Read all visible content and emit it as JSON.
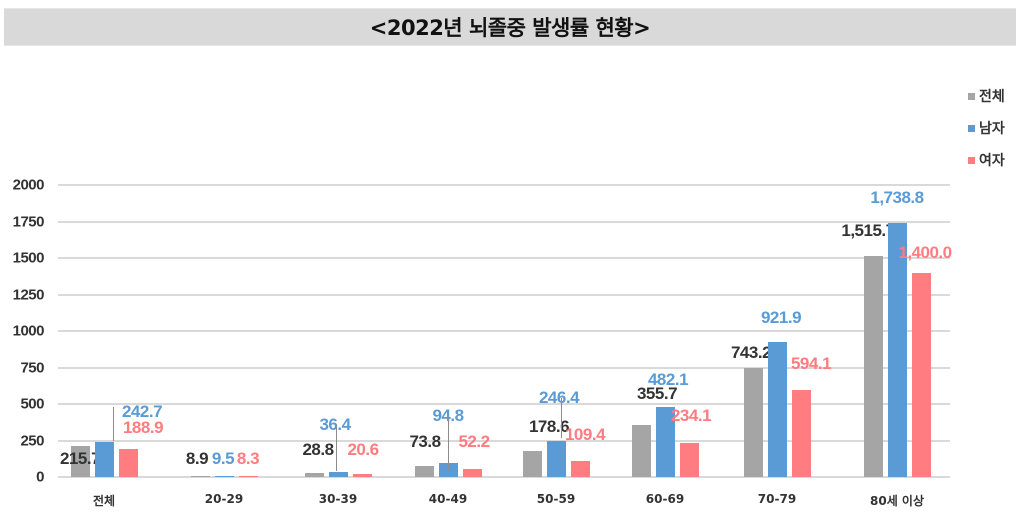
{
  "title": "<2022년 뇌졸중 발생률 현황>",
  "colors": {
    "total": "#A5A5A5",
    "male": "#5B9BD5",
    "female": "#FF7C80",
    "total_label": "#333333",
    "male_label": "#5B9BD5",
    "female_label": "#FF7C80"
  },
  "legend": [
    {
      "label": "전체",
      "color": "#A5A5A5"
    },
    {
      "label": "남자",
      "color": "#5B9BD5"
    },
    {
      "label": "여자",
      "color": "#FF7C80"
    }
  ],
  "chart_data": {
    "type": "bar",
    "title": "<2022년 뇌졸중 발생률 현황>",
    "xlabel": "",
    "ylabel": "",
    "ylim": [
      0,
      2000
    ],
    "yticks": [
      0,
      250,
      500,
      750,
      1000,
      1250,
      1500,
      1750,
      2000
    ],
    "grid": true,
    "legend_position": "right",
    "categories": [
      "전체",
      "20-29",
      "30-39",
      "40-49",
      "50-59",
      "60-69",
      "70-79",
      "80세 이상"
    ],
    "series": [
      {
        "name": "전체",
        "values": [
          215.7,
          8.9,
          28.8,
          73.8,
          178.6,
          355.7,
          743.2,
          1515.7
        ],
        "labels": [
          "215.7",
          "8.9",
          "28.8",
          "73.8",
          "178.6",
          "355.7",
          "743.2",
          "1,515.7"
        ]
      },
      {
        "name": "남자",
        "values": [
          242.7,
          9.5,
          36.4,
          94.8,
          246.4,
          482.1,
          921.9,
          1738.8
        ],
        "labels": [
          "242.7",
          "9.5",
          "36.4",
          "94.8",
          "246.4",
          "482.1",
          "921.9",
          "1,738.8"
        ]
      },
      {
        "name": "여자",
        "values": [
          188.9,
          8.3,
          20.6,
          52.2,
          109.4,
          234.1,
          594.1,
          1400.0
        ],
        "labels": [
          "188.9",
          "8.3",
          "20.6",
          "52.2",
          "109.4",
          "234.1",
          "594.1",
          "1,400.0"
        ]
      }
    ]
  }
}
